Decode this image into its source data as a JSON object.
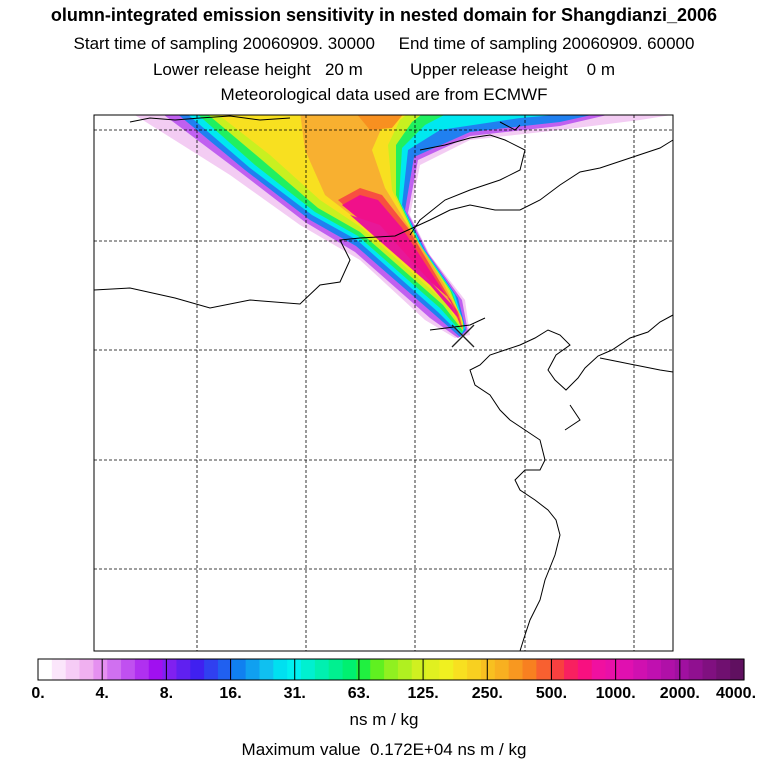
{
  "header": {
    "title": "olumn-integrated emission sensitivity in nested domain for Shangdianzi_2006",
    "sampling_line": "Start time of sampling 20060909. 30000     End time of sampling 20060909. 60000",
    "release_line": "Lower release height   20 m          Upper release height    0 m",
    "met_line": "Meteorological data used are from ECMWF"
  },
  "map": {
    "description_id": "emission-sensitivity-plume-map",
    "station_marker": "Shangdianzi"
  },
  "colorbar": {
    "tick_labels": [
      "0.",
      "4.",
      "8.",
      "16.",
      "31.",
      "63.",
      "125.",
      "250.",
      "500.",
      "1000.",
      "2000.",
      "4000."
    ],
    "colors": [
      "#ffffff",
      "#fbe6fb",
      "#f6ccf6",
      "#f0b0f0",
      "#e590f0",
      "#d070f0",
      "#c050f0",
      "#b030f0",
      "#a010f0",
      "#8020f0",
      "#6020f0",
      "#4020f0",
      "#3040f0",
      "#2060f0",
      "#1080f0",
      "#10a0f0",
      "#10c0f0",
      "#00e0f0",
      "#00f0f0",
      "#00f0d0",
      "#00f0b0",
      "#00f090",
      "#00f070",
      "#20f040",
      "#60f020",
      "#90f020",
      "#b0f020",
      "#d0f020",
      "#e0f020",
      "#f0f020",
      "#f8e020",
      "#f8d020",
      "#f8c020",
      "#f8b020",
      "#f89820",
      "#f88020",
      "#f86030",
      "#f84040",
      "#f82060",
      "#f81080",
      "#f010a0",
      "#e810a8",
      "#e010b0",
      "#d010b0",
      "#c010b0",
      "#b010a8",
      "#a010a0",
      "#901090",
      "#801080",
      "#701070",
      "#601060"
    ],
    "unit": "ns m / kg"
  },
  "summary": {
    "max_value_line": "Maximum value  0.172E+04 ns m / kg"
  }
}
